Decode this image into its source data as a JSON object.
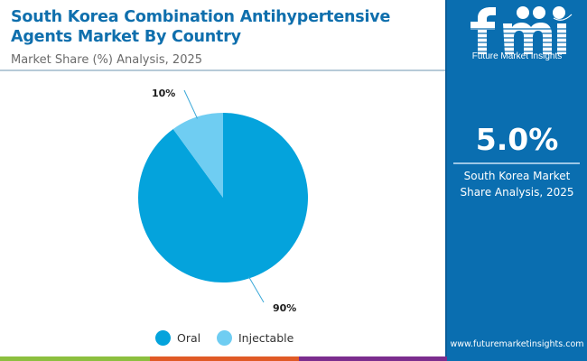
{
  "header": {
    "title": "South Korea Combination Antihypertensive Agents Market By Country",
    "subtitle": "Market Share (%) Analysis, 2025"
  },
  "sidebar": {
    "logo_text": "Future Market Insights",
    "highlight_value": "5.0%",
    "highlight_caption_line1": "South Korea Market",
    "highlight_caption_line2": "Share Analysis, 2025",
    "url": "www.futuremarketinsights.com"
  },
  "colors": {
    "title": "#0f6fad",
    "sidebar": "#0a6eb0",
    "oral": "#04a3dc",
    "injectable": "#6fcdf2",
    "footer_green": "#8cbf3f",
    "footer_orange": "#e05a26",
    "footer_purple": "#7b2d8e"
  },
  "chart_data": {
    "type": "pie",
    "title": "South Korea Combination Antihypertensive Agents Market By Country",
    "subtitle": "Market Share (%) Analysis, 2025",
    "categories": [
      "Oral",
      "Injectable"
    ],
    "values": [
      90,
      10
    ],
    "data_labels": [
      "90%",
      "10%"
    ],
    "legend": [
      "Oral",
      "Injectable"
    ],
    "legend_position": "bottom",
    "start_angle": "top, clockwise"
  }
}
